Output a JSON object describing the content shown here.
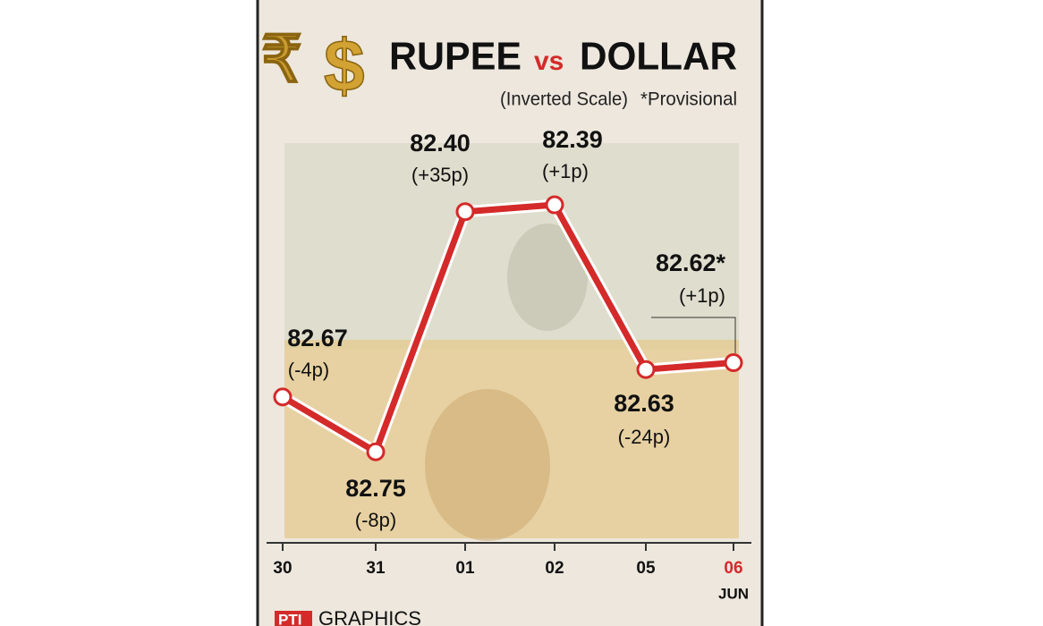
{
  "chart_data": {
    "type": "line",
    "symbols": [
      "₹",
      "$"
    ],
    "title": [
      "RUPEE",
      "vs",
      "DOLLAR"
    ],
    "subtitle": "(Inverted Scale)",
    "note": "*Provisional",
    "categories": [
      "30",
      "31",
      "01",
      "02",
      "05",
      "06"
    ],
    "category_colors": [
      "#111111",
      "#111111",
      "#111111",
      "#111111",
      "#111111",
      "#d42a2a"
    ],
    "month": "JUN",
    "values": [
      82.67,
      82.75,
      82.4,
      82.39,
      82.63,
      82.62
    ],
    "value_labels": [
      "82.67",
      "82.75",
      "82.40",
      "82.39",
      "82.63",
      "82.62*"
    ],
    "change_labels": [
      "(-4p)",
      "(-8p)",
      "(+35p)",
      "(+1p)",
      "(-24p)",
      "(+1p)"
    ],
    "color": "#d42a2a",
    "ylim": [
      82.88,
      82.3
    ],
    "inverted": true,
    "logo": "PTI",
    "credit": "GRAPHICS"
  }
}
